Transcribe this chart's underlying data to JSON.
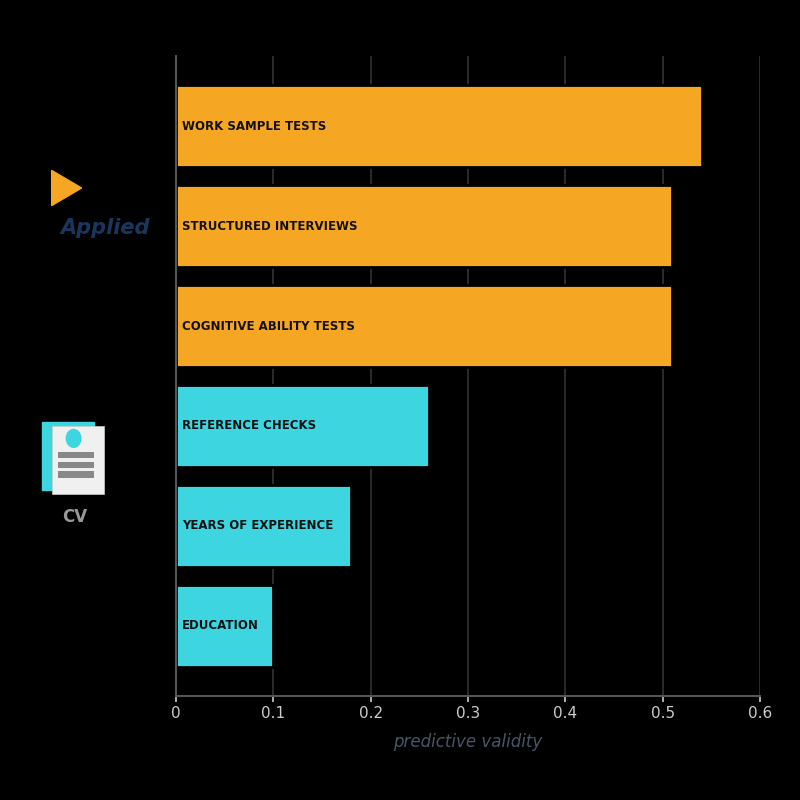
{
  "categories": [
    "EDUCATION",
    "YEARS OF EXPERIENCE",
    "REFERENCE CHECKS",
    "COGNITIVE ABILITY TESTS",
    "STRUCTURED INTERVIEWS",
    "WORK SAMPLE TESTS"
  ],
  "values": [
    0.1,
    0.18,
    0.26,
    0.51,
    0.51,
    0.54
  ],
  "bar_colors": [
    "#3DD6E0",
    "#3DD6E0",
    "#3DD6E0",
    "#F5A623",
    "#F5A623",
    "#F5A623"
  ],
  "xlabel": "predictive validity",
  "xlim": [
    0,
    0.6
  ],
  "xticks": [
    0,
    0.1,
    0.2,
    0.3,
    0.4,
    0.5,
    0.6
  ],
  "background_color": "#000000",
  "bar_edge_color": "#000000",
  "label_fontsize": 8.5,
  "xlabel_fontsize": 12,
  "tick_fontsize": 11,
  "tick_color": "#cccccc",
  "xlabel_color": "#4a5568",
  "grid_color": "#333333",
  "applied_text_color": "#1a365d",
  "applied_icon_color": "#F5A623",
  "cv_text_color": "#999999",
  "bar_label_color": "#111111"
}
